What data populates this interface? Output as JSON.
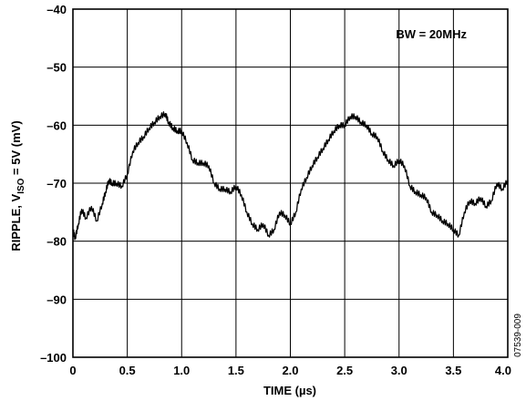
{
  "chart_data": {
    "type": "line",
    "title": "",
    "xlabel": "TIME (µs)",
    "ylabel": {
      "prefix": "RIPPLE, V",
      "subscript": "ISO",
      "suffix": " = 5V (mV)"
    },
    "xlim": [
      0,
      4.0
    ],
    "ylim": [
      -100,
      -40
    ],
    "x_ticks": [
      0,
      0.5,
      1.0,
      1.5,
      2.0,
      2.5,
      3.0,
      3.5,
      4.0
    ],
    "x_tick_labels": [
      "0",
      "0.5",
      "1.0",
      "1.5",
      "2.0",
      "2.5",
      "3.0",
      "3.5",
      "4.0"
    ],
    "y_ticks": [
      -40,
      -50,
      -60,
      -70,
      -80,
      -90,
      -100
    ],
    "y_tick_labels": [
      "–40",
      "–50",
      "–60",
      "–70",
      "–80",
      "–90",
      "–100"
    ],
    "grid": true,
    "annotation": "BW = 20MHz",
    "figure_id": "07539-009",
    "series": [
      {
        "color": "#000000",
        "x": [
          0,
          0.02,
          0.05,
          0.08,
          0.12,
          0.17,
          0.22,
          0.27,
          0.3,
          0.33,
          0.36,
          0.4,
          0.45,
          0.5,
          0.55,
          0.6,
          0.65,
          0.7,
          0.75,
          0.8,
          0.85,
          0.88,
          0.92,
          0.96,
          1.0,
          1.05,
          1.1,
          1.15,
          1.2,
          1.25,
          1.3,
          1.35,
          1.4,
          1.45,
          1.5,
          1.55,
          1.6,
          1.65,
          1.7,
          1.75,
          1.8,
          1.85,
          1.9,
          1.95,
          2.0,
          2.05,
          2.1,
          2.15,
          2.2,
          2.25,
          2.3,
          2.35,
          2.4,
          2.45,
          2.5,
          2.55,
          2.6,
          2.65,
          2.7,
          2.75,
          2.8,
          2.85,
          2.9,
          2.95,
          3.0,
          3.05,
          3.1,
          3.15,
          3.2,
          3.25,
          3.3,
          3.35,
          3.4,
          3.45,
          3.5,
          3.55,
          3.6,
          3.65,
          3.7,
          3.75,
          3.8,
          3.85,
          3.9,
          3.95,
          4.0
        ],
        "y": [
          -78,
          -79.5,
          -77,
          -74.5,
          -76,
          -74,
          -76.5,
          -73.5,
          -71.5,
          -69.5,
          -70,
          -70,
          -70.5,
          -68.5,
          -64.5,
          -63,
          -62,
          -60.5,
          -59.5,
          -58.5,
          -58,
          -59.5,
          -60.5,
          -61,
          -61,
          -63,
          -66,
          -66.5,
          -66.5,
          -67,
          -70,
          -71,
          -71,
          -71.5,
          -70.5,
          -72,
          -75,
          -77,
          -78,
          -77,
          -79,
          -78,
          -75,
          -75.5,
          -77,
          -75,
          -71,
          -69,
          -67,
          -65.5,
          -64,
          -62.5,
          -61,
          -60,
          -60,
          -58.5,
          -58.5,
          -59.5,
          -60,
          -61.5,
          -62,
          -64.5,
          -66,
          -67,
          -66,
          -67,
          -70.5,
          -71.5,
          -72,
          -72.5,
          -75,
          -75.5,
          -76.5,
          -77,
          -78,
          -79,
          -75,
          -73,
          -73.5,
          -72.5,
          -74,
          -73,
          -70,
          -71,
          -69.5
        ]
      }
    ]
  }
}
